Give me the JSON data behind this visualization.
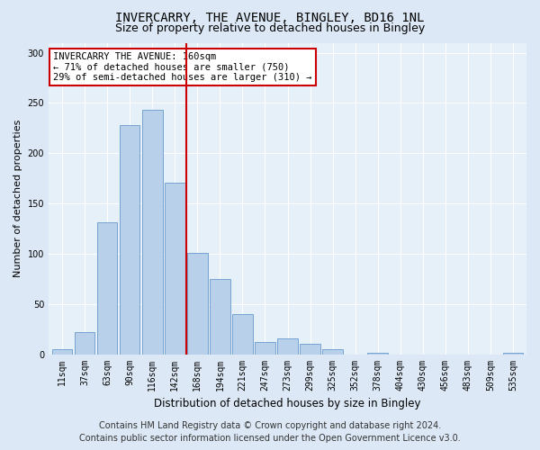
{
  "title": "INVERCARRY, THE AVENUE, BINGLEY, BD16 1NL",
  "subtitle": "Size of property relative to detached houses in Bingley",
  "xlabel": "Distribution of detached houses by size in Bingley",
  "ylabel": "Number of detached properties",
  "categories": [
    "11sqm",
    "37sqm",
    "63sqm",
    "90sqm",
    "116sqm",
    "142sqm",
    "168sqm",
    "194sqm",
    "221sqm",
    "247sqm",
    "273sqm",
    "299sqm",
    "325sqm",
    "352sqm",
    "378sqm",
    "404sqm",
    "430sqm",
    "456sqm",
    "483sqm",
    "509sqm",
    "535sqm"
  ],
  "values": [
    5,
    22,
    131,
    228,
    243,
    171,
    101,
    75,
    40,
    12,
    16,
    10,
    5,
    0,
    1,
    0,
    0,
    0,
    0,
    0,
    1
  ],
  "bar_color": "#b8d0ea",
  "bar_edge_color": "#6699cc",
  "vline_x": 5.5,
  "vline_color": "#cc0000",
  "annotation_text": "INVERCARRY THE AVENUE: 160sqm\n← 71% of detached houses are smaller (750)\n29% of semi-detached houses are larger (310) →",
  "annotation_box_color": "#ffffff",
  "annotation_box_edge": "#cc0000",
  "ylim": [
    0,
    310
  ],
  "yticks": [
    0,
    50,
    100,
    150,
    200,
    250,
    300
  ],
  "footer": "Contains HM Land Registry data © Crown copyright and database right 2024.\nContains public sector information licensed under the Open Government Licence v3.0.",
  "bg_color": "#dce8f5",
  "plot_bg_color": "#e6f0f8",
  "title_fontsize": 10,
  "subtitle_fontsize": 9,
  "footer_fontsize": 7,
  "ylabel_fontsize": 8,
  "xlabel_fontsize": 8.5,
  "tick_fontsize": 7,
  "annot_fontsize": 7.5
}
